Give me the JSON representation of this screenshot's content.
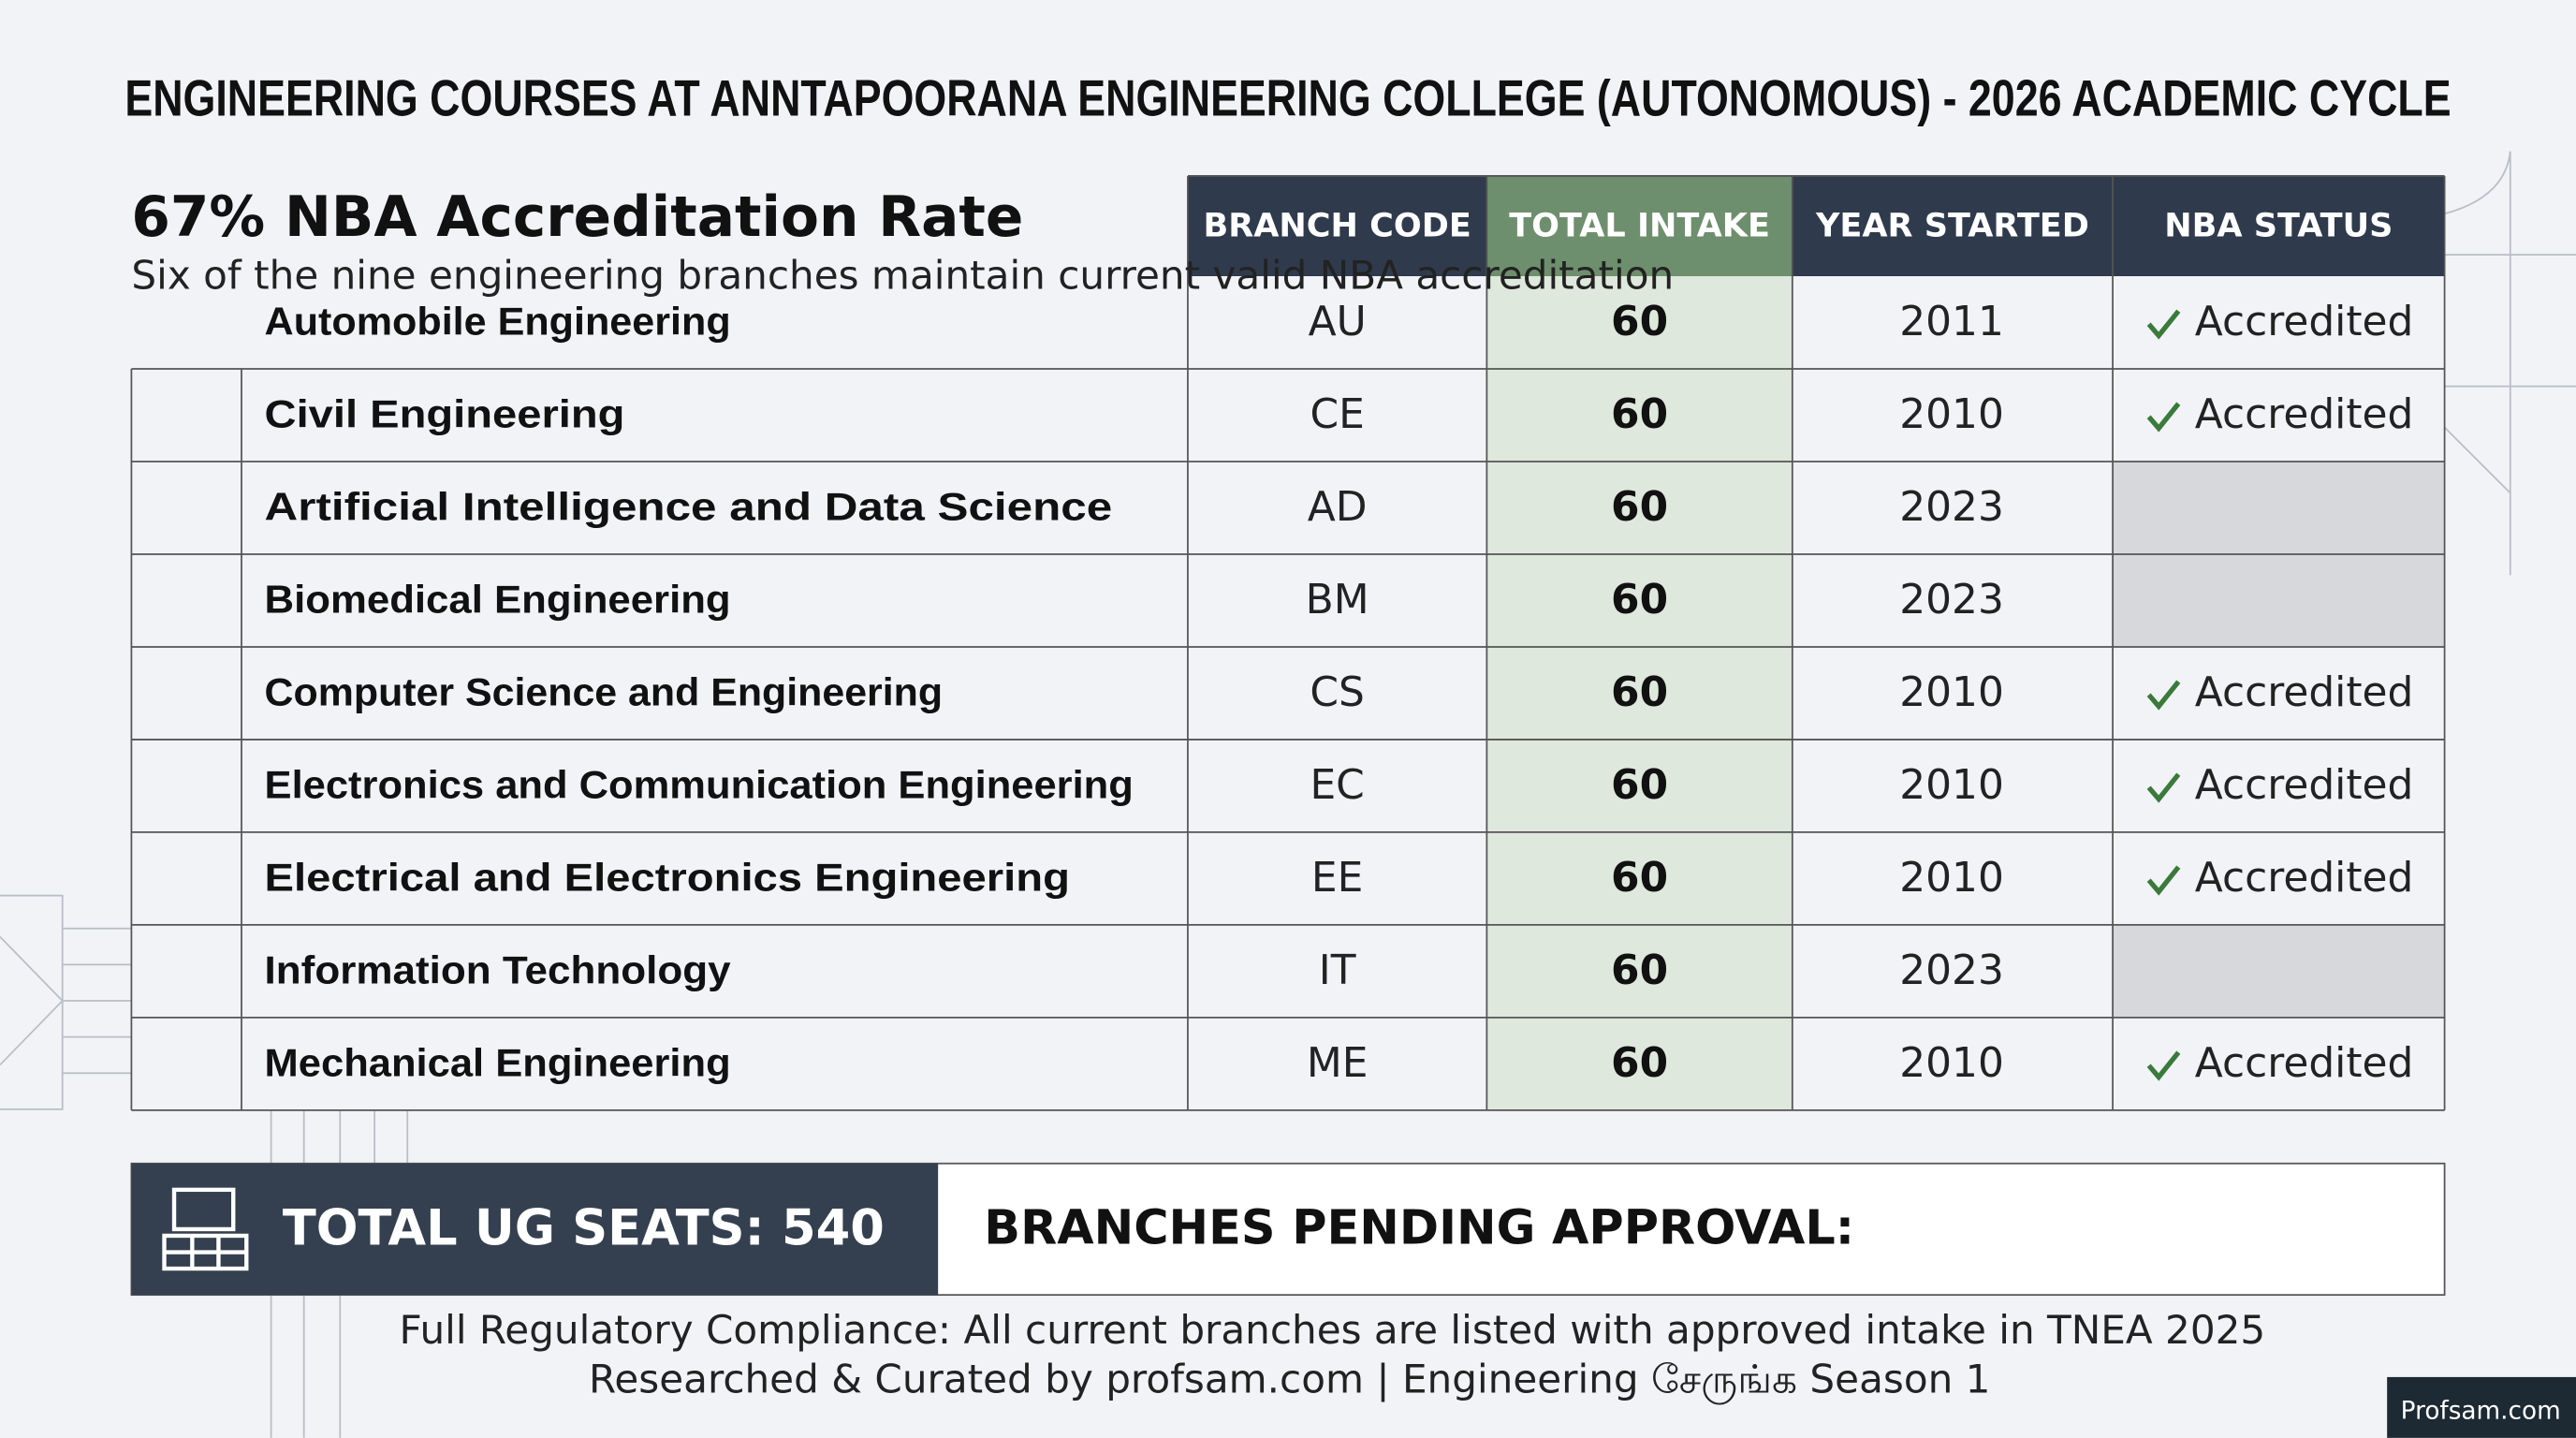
{
  "title": "ENGINEERING COURSES AT ANNTAPOORANA ENGINEERING COLLEGE (AUTONOMOUS) - 2026 ACADEMIC CYCLE",
  "highlight": {
    "headline": "67% NBA Accreditation Rate",
    "subtext": "Six of the nine engineering branches maintain current valid NBA accreditation"
  },
  "table": {
    "columns": [
      "BRANCH CODE",
      "TOTAL INTAKE",
      "YEAR STARTED",
      "NBA STATUS"
    ],
    "rows": [
      [
        "Automobile Engineering",
        "AU",
        60,
        2011,
        "Accredited"
      ],
      [
        "Civil Engineering",
        "CE",
        60,
        2010,
        "Accredited"
      ],
      [
        "Artificial Intelligence and Data Science",
        "AD",
        60,
        2023,
        null
      ],
      [
        "Biomedical Engineering",
        "BM",
        60,
        2023,
        null
      ],
      [
        "Computer Science and Engineering",
        "CS",
        60,
        2010,
        "Accredited"
      ],
      [
        "Electronics and Communication Engineering",
        "EC",
        60,
        2010,
        "Accredited"
      ],
      [
        "Electrical and Electronics Engineering",
        "EE",
        60,
        2010,
        "Accredited"
      ],
      [
        "Information Technology",
        "IT",
        60,
        2023,
        null
      ],
      [
        "Mechanical Engineering",
        "ME",
        60,
        2010,
        "Accredited"
      ]
    ]
  },
  "summary": {
    "total": "TOTAL UG SEATS: 540",
    "pending": "BRANCHES PENDING APPROVAL:"
  },
  "footer": {
    "compliance": "Full Regulatory Compliance: All current branches are listed with approved intake in TNEA 2025",
    "credit": "Researched & Curated by profsam.com | Engineering சேருங்க Season 1",
    "watermark": "Profsam.com"
  }
}
